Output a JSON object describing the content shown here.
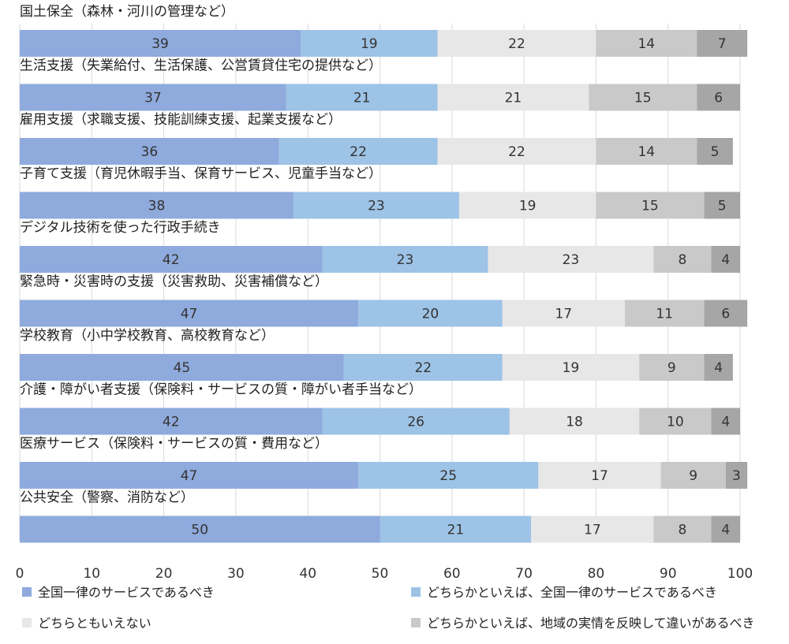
{
  "chart_data": {
    "type": "bar",
    "orientation": "horizontal",
    "stacked": true,
    "title": "",
    "xlabel": "",
    "ylabel": "",
    "xlim": [
      0,
      100
    ],
    "x_ticks": [
      0,
      10,
      20,
      30,
      40,
      50,
      60,
      70,
      80,
      90,
      100
    ],
    "grid": true,
    "legend_position": "bottom",
    "categories": [
      "国土保全（森林・河川の管理など）",
      "生活支援（失業給付、生活保護、公営賃貸住宅の提供など）",
      "雇用支援（求職支援、技能訓練支援、起業支援など）",
      "子育て支援（育児休暇手当、保育サービス、児童手当など）",
      "デジタル技術を使った行政手続き",
      "緊急時・災害時の支援（災害救助、災害補償など）",
      "学校教育（小中学校教育、高校教育など）",
      "介護・障がい者支援（保険料・サービスの質・障がい者手当など）",
      "医療サービス（保険料・サービスの質・費用など）",
      "公共安全（警察、消防など）"
    ],
    "series": [
      {
        "name": "全国一律のサービスであるべき",
        "color": "#8faadc",
        "values": [
          39,
          37,
          36,
          38,
          42,
          47,
          45,
          42,
          47,
          50
        ]
      },
      {
        "name": "どちらかといえば、全国一律のサービスであるべき",
        "color": "#9dc3e6",
        "values": [
          19,
          21,
          22,
          23,
          23,
          20,
          22,
          26,
          25,
          21
        ]
      },
      {
        "name": "どちらともいえない",
        "color": "#e7e7e7",
        "values": [
          22,
          21,
          22,
          19,
          23,
          17,
          19,
          18,
          17,
          17
        ]
      },
      {
        "name": "どちらかといえば、地域の実情を反映して違いがあるべき",
        "color": "#c9c9c9",
        "values": [
          14,
          15,
          14,
          15,
          8,
          11,
          9,
          10,
          9,
          8
        ]
      },
      {
        "name": "",
        "color": "#a6a6a6",
        "values": [
          7,
          6,
          5,
          5,
          4,
          6,
          4,
          4,
          3,
          4
        ]
      }
    ]
  }
}
